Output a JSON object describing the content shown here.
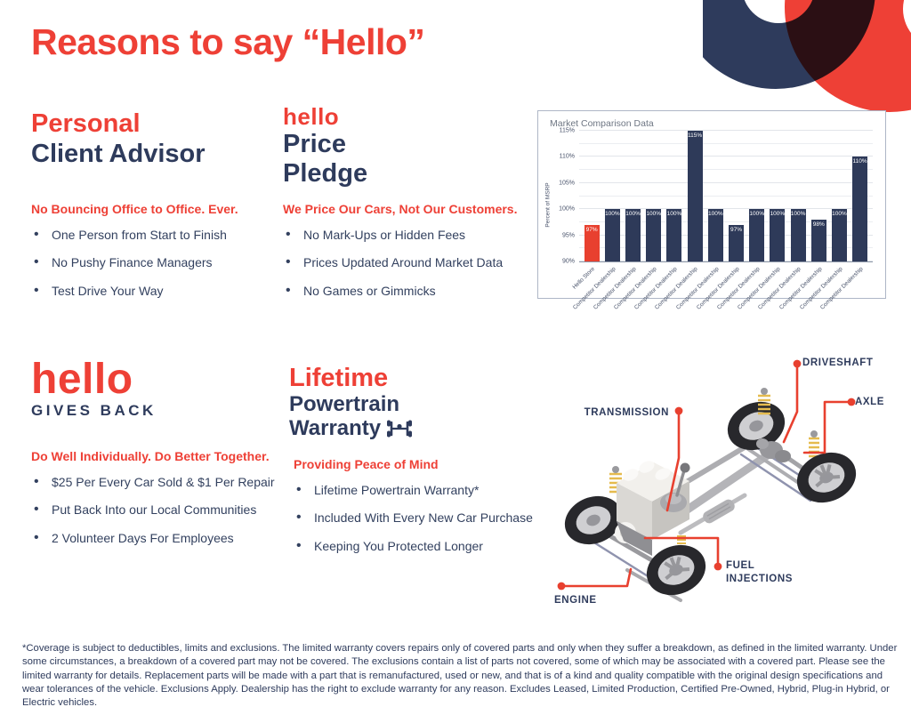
{
  "page": {
    "title": "Reasons to say “Hello”"
  },
  "colors": {
    "red": "#EE4036",
    "navy": "#2E3B5C",
    "bar_navy": "#2E3A59",
    "chart_border": "#AEB6C6"
  },
  "sections": {
    "advisor": {
      "title_accent": "Personal",
      "title_main": "Client Advisor",
      "subhead": "No Bouncing Office to Office. Ever.",
      "bullets": [
        "One Person from Start to Finish",
        "No Pushy Finance Managers",
        "Test Drive Your Way"
      ]
    },
    "price_pledge": {
      "logo": "hello",
      "title_line1": "Price",
      "title_line2": "Pledge",
      "subhead": "We Price Our Cars, Not Our Customers.",
      "bullets": [
        "No Mark-Ups or Hidden Fees",
        "Prices Updated Around Market Data",
        "No Games or Gimmicks"
      ]
    },
    "gives_back": {
      "logo": "hello",
      "title_main": "GIVES BACK",
      "subhead": "Do Well Individually. Do Better Together.",
      "bullets": [
        "$25 Per Every Car Sold & $1 Per Repair",
        "Put Back Into our Local Communities",
        "2 Volunteer Days For Employees"
      ]
    },
    "warranty": {
      "title_accent": "Lifetime",
      "title_line1": "Powertrain",
      "title_line2": "Warranty",
      "subhead": "Providing Peace of Mind",
      "bullets": [
        "Lifetime Powertrain Warranty*",
        "Included With Every New Car Purchase",
        "Keeping You Protected Longer"
      ]
    }
  },
  "chart_data": {
    "type": "bar",
    "title": "Market Comparison Data",
    "xlabel": "",
    "ylabel": "Percent of MSRP",
    "ylim": [
      90,
      115
    ],
    "yticks": [
      90,
      95,
      100,
      105,
      110,
      115
    ],
    "grid_step": 2.5,
    "grid": true,
    "legend_position": "none",
    "categories": [
      "Hello Store",
      "Competitor Dealership",
      "Competitor Dealership",
      "Competitor Dealership",
      "Competitor Dealership",
      "Competitor Dealership",
      "Competitor Dealership",
      "Competitor Dealership",
      "Competitor Dealership",
      "Competitor Dealership",
      "Competitor Dealership",
      "Competitor Dealership",
      "Competitor Dealership",
      "Competitor Dealership"
    ],
    "values": [
      97,
      100,
      100,
      100,
      100,
      115,
      100,
      97,
      100,
      100,
      100,
      98,
      100,
      110
    ],
    "value_label_format": "percent",
    "bar_color": "#2E3A59",
    "highlight_index": 0,
    "highlight_color": "#E8402F"
  },
  "diagram": {
    "labels": {
      "driveshaft": "DRIVESHAFT",
      "axle": "AXLE",
      "transmission": "TRANSMISSION",
      "fuel_injections": "FUEL INJECTIONS",
      "engine": "ENGINE"
    }
  },
  "footer": {
    "disclaimer": "*Coverage is subject to deductibles, limits and exclusions. The limited warranty covers repairs only of covered parts and only when they suffer a breakdown, as defined in the limited warranty. Under some circumstances, a breakdown of a covered part may not be covered. The exclusions contain a list of parts not covered, some of which may be associated with a covered part. Please see the limited warranty for details. Replacement parts will be made with a part that is remanufactured, used or new, and that is of a kind and quality compatible with the original design specifications and wear tolerances of the vehicle. Exclusions Apply. Dealership has the right to exclude warranty for any reason. Excludes Leased, Limited Production, Certified Pre-Owned, Hybrid, Plug-in Hybrid, or Electric vehicles."
  }
}
